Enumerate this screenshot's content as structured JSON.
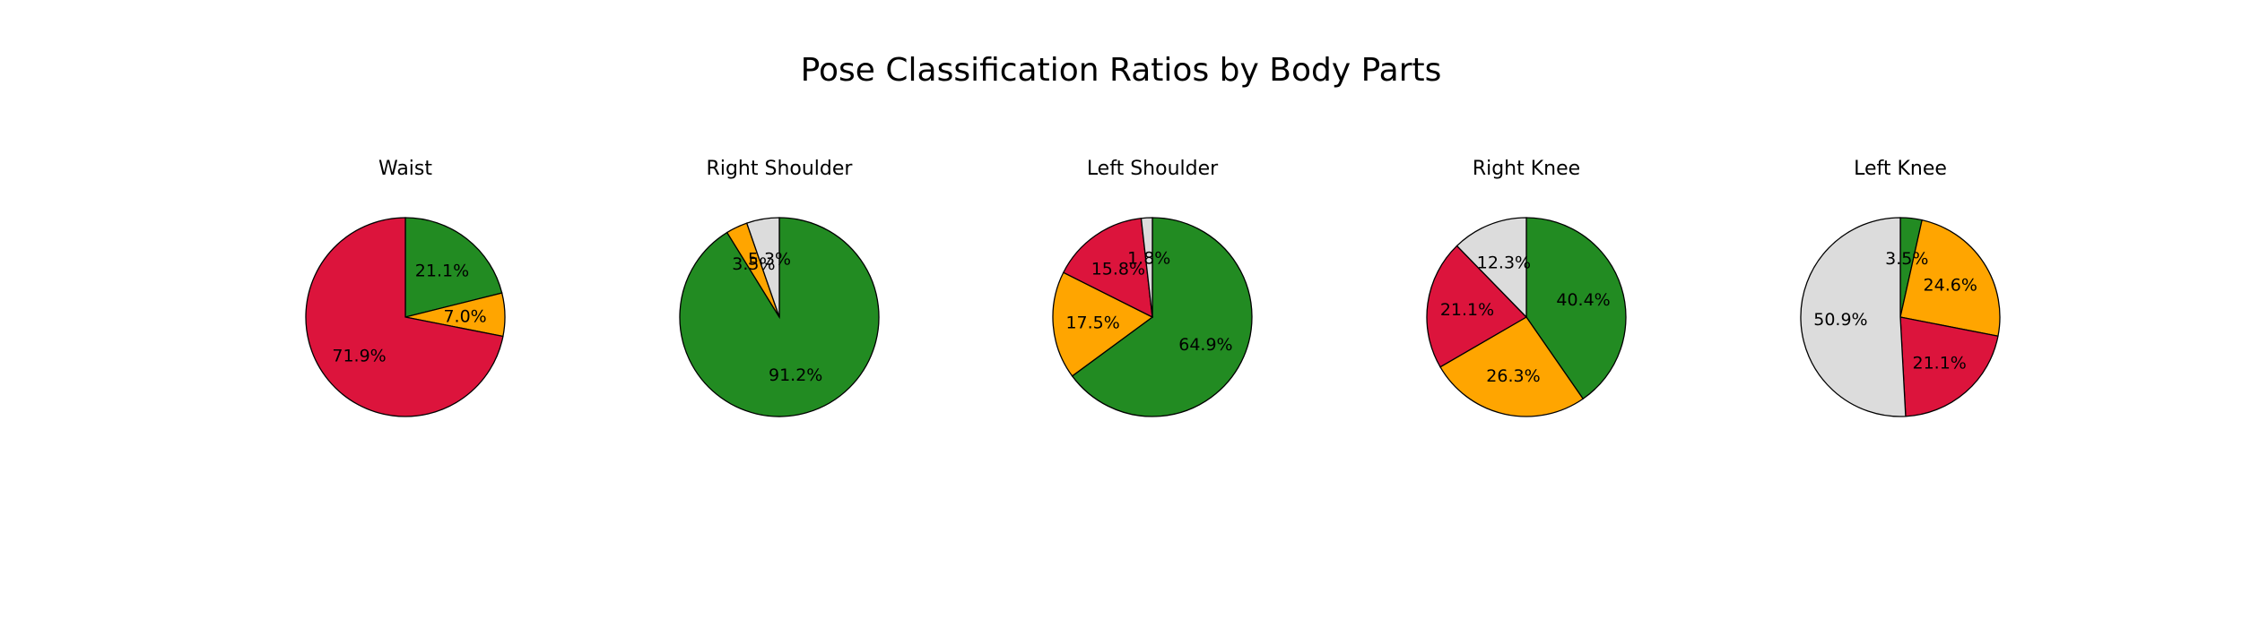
{
  "title": "Pose Classification Ratios by Body Parts",
  "colors": {
    "green": "#228b22",
    "orange": "#ffa500",
    "red": "#dc143c",
    "gray": "#dcdcdc",
    "edge": "#000000"
  },
  "chart_data": [
    {
      "type": "pie",
      "title": "Waist",
      "start_angle_deg": 90,
      "direction": "clockwise",
      "slices": [
        {
          "value": 21.1,
          "label": "21.1%",
          "color": "#228b22"
        },
        {
          "value": 7.0,
          "label": "7.0%",
          "color": "#ffa500"
        },
        {
          "value": 71.9,
          "label": "71.9%",
          "color": "#dc143c"
        },
        {
          "value": 0.0,
          "label": "",
          "color": "#dcdcdc"
        }
      ]
    },
    {
      "type": "pie",
      "title": "Right Shoulder",
      "start_angle_deg": 90,
      "direction": "clockwise",
      "slices": [
        {
          "value": 91.2,
          "label": "91.2%",
          "color": "#228b22"
        },
        {
          "value": 3.5,
          "label": "3.5%",
          "color": "#ffa500"
        },
        {
          "value": 0.0,
          "label": "",
          "color": "#dc143c"
        },
        {
          "value": 5.3,
          "label": "5.3%",
          "color": "#dcdcdc"
        }
      ]
    },
    {
      "type": "pie",
      "title": "Left Shoulder",
      "start_angle_deg": 90,
      "direction": "clockwise",
      "slices": [
        {
          "value": 64.9,
          "label": "64.9%",
          "color": "#228b22"
        },
        {
          "value": 17.5,
          "label": "17.5%",
          "color": "#ffa500"
        },
        {
          "value": 15.8,
          "label": "15.8%",
          "color": "#dc143c"
        },
        {
          "value": 1.8,
          "label": "1.8%",
          "color": "#dcdcdc"
        }
      ]
    },
    {
      "type": "pie",
      "title": "Right Knee",
      "start_angle_deg": 90,
      "direction": "clockwise",
      "slices": [
        {
          "value": 40.4,
          "label": "40.4%",
          "color": "#228b22"
        },
        {
          "value": 26.3,
          "label": "26.3%",
          "color": "#ffa500"
        },
        {
          "value": 21.1,
          "label": "21.1%",
          "color": "#dc143c"
        },
        {
          "value": 12.3,
          "label": "12.3%",
          "color": "#dcdcdc"
        }
      ]
    },
    {
      "type": "pie",
      "title": "Left Knee",
      "start_angle_deg": 90,
      "direction": "clockwise",
      "slices": [
        {
          "value": 3.5,
          "label": "3.5%",
          "color": "#228b22"
        },
        {
          "value": 24.6,
          "label": "24.6%",
          "color": "#ffa500"
        },
        {
          "value": 21.1,
          "label": "21.1%",
          "color": "#dc143c"
        },
        {
          "value": 50.9,
          "label": "50.9%",
          "color": "#dcdcdc"
        }
      ]
    }
  ]
}
